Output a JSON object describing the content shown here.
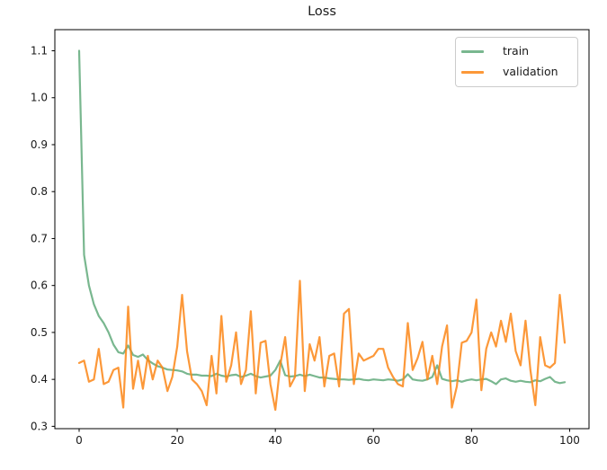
{
  "chart_data": {
    "type": "line",
    "title": "Loss",
    "xlabel": "",
    "ylabel": "",
    "x_ticks": [
      0,
      20,
      40,
      60,
      80,
      100
    ],
    "y_ticks": [
      0.3,
      0.4,
      0.5,
      0.6,
      0.7,
      0.8,
      0.9,
      1.0,
      1.1
    ],
    "xlim": [
      -4.95,
      103.95
    ],
    "ylim": [
      0.295,
      1.145
    ],
    "grid": false,
    "legend_position": "upper right",
    "axis_color": "#000000",
    "tick_label_color": "#1a1a1a",
    "series": [
      {
        "name": "train",
        "color": "#62aa7b",
        "values": [
          1.1,
          0.665,
          0.6,
          0.56,
          0.535,
          0.52,
          0.5,
          0.474,
          0.458,
          0.455,
          0.472,
          0.452,
          0.448,
          0.453,
          0.441,
          0.434,
          0.428,
          0.425,
          0.421,
          0.42,
          0.419,
          0.417,
          0.412,
          0.41,
          0.41,
          0.408,
          0.408,
          0.407,
          0.412,
          0.408,
          0.406,
          0.409,
          0.41,
          0.405,
          0.408,
          0.412,
          0.407,
          0.404,
          0.406,
          0.408,
          0.42,
          0.44,
          0.409,
          0.406,
          0.407,
          0.41,
          0.407,
          0.41,
          0.407,
          0.404,
          0.404,
          0.402,
          0.401,
          0.4,
          0.4,
          0.399,
          0.4,
          0.401,
          0.399,
          0.398,
          0.4,
          0.399,
          0.398,
          0.4,
          0.399,
          0.397,
          0.4,
          0.411,
          0.4,
          0.398,
          0.397,
          0.4,
          0.405,
          0.43,
          0.401,
          0.398,
          0.396,
          0.398,
          0.395,
          0.398,
          0.4,
          0.398,
          0.4,
          0.401,
          0.396,
          0.39,
          0.4,
          0.402,
          0.397,
          0.395,
          0.397,
          0.395,
          0.394,
          0.398,
          0.396,
          0.401,
          0.405,
          0.395,
          0.392,
          0.394
        ]
      },
      {
        "name": "validation",
        "color": "#fc8616",
        "values": [
          0.435,
          0.44,
          0.395,
          0.4,
          0.465,
          0.39,
          0.395,
          0.42,
          0.425,
          0.34,
          0.555,
          0.38,
          0.44,
          0.38,
          0.45,
          0.4,
          0.44,
          0.425,
          0.375,
          0.405,
          0.47,
          0.58,
          0.46,
          0.4,
          0.39,
          0.375,
          0.345,
          0.45,
          0.37,
          0.535,
          0.395,
          0.43,
          0.5,
          0.39,
          0.42,
          0.545,
          0.37,
          0.478,
          0.482,
          0.39,
          0.335,
          0.43,
          0.49,
          0.385,
          0.405,
          0.61,
          0.375,
          0.475,
          0.44,
          0.49,
          0.385,
          0.45,
          0.455,
          0.385,
          0.54,
          0.55,
          0.39,
          0.455,
          0.44,
          0.445,
          0.45,
          0.465,
          0.465,
          0.425,
          0.405,
          0.39,
          0.385,
          0.52,
          0.42,
          0.445,
          0.48,
          0.4,
          0.45,
          0.39,
          0.47,
          0.515,
          0.34,
          0.385,
          0.478,
          0.482,
          0.5,
          0.57,
          0.377,
          0.465,
          0.5,
          0.47,
          0.525,
          0.48,
          0.54,
          0.46,
          0.43,
          0.525,
          0.42,
          0.345,
          0.49,
          0.43,
          0.425,
          0.435,
          0.58,
          0.478
        ]
      }
    ]
  }
}
